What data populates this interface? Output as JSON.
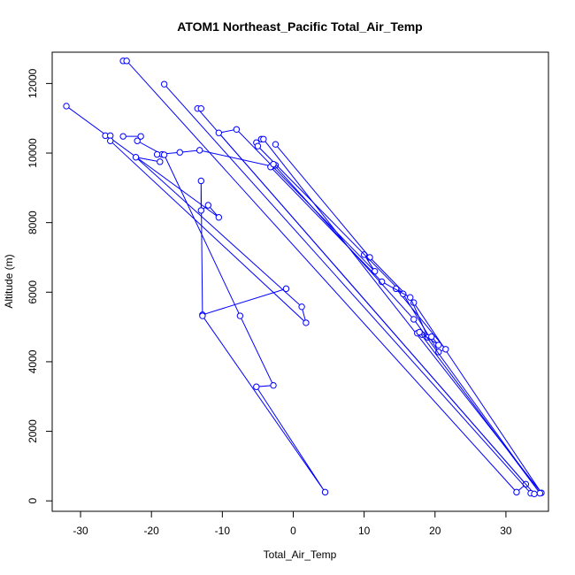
{
  "chart_data": {
    "type": "line",
    "title": "ATOM1 Northeast_Pacific Total_Air_Temp",
    "xlabel": "Total_Air_Temp",
    "ylabel": "Altitude (m)",
    "xlim": [
      -34,
      36
    ],
    "ylim": [
      -300,
      12900
    ],
    "xticks": [
      -30,
      -20,
      -10,
      0,
      10,
      20,
      30
    ],
    "yticks": [
      0,
      2000,
      4000,
      6000,
      8000,
      10000,
      12000
    ],
    "grid": false,
    "legend": "none",
    "series_color": "#0000ff",
    "series": [
      {
        "points": [
          [
            -32.0,
            11350
          ],
          [
            -10.5,
            8150
          ],
          [
            -12.0,
            8500
          ],
          [
            -13.0,
            8350
          ],
          [
            -13.0,
            9200
          ],
          [
            -12.8,
            5350
          ],
          [
            -1.0,
            6100
          ]
        ]
      },
      {
        "points": [
          [
            -26.5,
            10500
          ],
          [
            -25.8,
            10500
          ],
          [
            -25.8,
            10350
          ],
          [
            1.8,
            5120
          ],
          [
            1.2,
            5580
          ],
          [
            -22.2,
            9880
          ],
          [
            -18.8,
            9750
          ]
        ]
      },
      {
        "points": [
          [
            -24.0,
            10480
          ],
          [
            -21.5,
            10480
          ],
          [
            -22.0,
            10350
          ],
          [
            -18.5,
            9960
          ],
          [
            -19.2,
            9960
          ],
          [
            -16.0,
            10020
          ],
          [
            -13.2,
            10080
          ],
          [
            -3.0,
            9620
          ],
          [
            -2.5,
            9650
          ]
        ]
      },
      {
        "points": [
          [
            -18.2,
            9950
          ],
          [
            -7.5,
            5320
          ],
          [
            -2.8,
            3320
          ],
          [
            -5.2,
            3280
          ],
          [
            4.5,
            250
          ],
          [
            -12.8,
            5320
          ]
        ]
      },
      {
        "points": [
          [
            -24.0,
            12650
          ],
          [
            -23.5,
            12650
          ],
          [
            31.5,
            250
          ],
          [
            32.8,
            480
          ],
          [
            -13.5,
            11280
          ],
          [
            -13.0,
            11280
          ]
        ]
      },
      {
        "points": [
          [
            -18.2,
            11980
          ],
          [
            33.5,
            220
          ],
          [
            34.0,
            200
          ],
          [
            -10.5,
            10580
          ],
          [
            -8.0,
            10680
          ],
          [
            11.5,
            6600
          ],
          [
            10.0,
            7080
          ]
        ]
      },
      {
        "points": [
          [
            -4.5,
            10400
          ],
          [
            -4.2,
            10400
          ],
          [
            35.0,
            230
          ],
          [
            17.0,
            5700
          ],
          [
            10.8,
            7000
          ],
          [
            -2.5,
            10250
          ]
        ]
      },
      {
        "points": [
          [
            -5.2,
            10300
          ],
          [
            -5.0,
            10200
          ],
          [
            15.5,
            5950
          ],
          [
            20.5,
            4280
          ],
          [
            21.5,
            4360
          ],
          [
            14.5,
            6100
          ]
        ]
      },
      {
        "points": [
          [
            -3.2,
            9600
          ],
          [
            12.5,
            6300
          ],
          [
            16.5,
            5850
          ],
          [
            19.0,
            4700
          ],
          [
            18.2,
            4780
          ],
          [
            17.5,
            4820
          ]
        ]
      },
      {
        "points": [
          [
            -2.8,
            9680
          ],
          [
            17.0,
            5220
          ],
          [
            34.8,
            220
          ],
          [
            17.8,
            4850
          ],
          [
            20.5,
            4480
          ],
          [
            19.5,
            4720
          ]
        ]
      }
    ]
  }
}
